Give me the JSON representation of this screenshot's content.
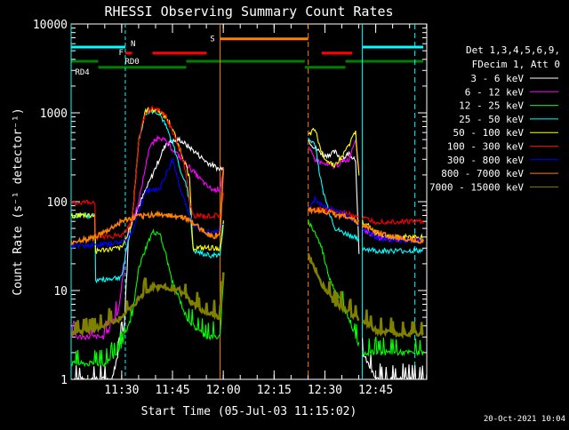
{
  "chart_data": {
    "type": "line",
    "title": "RHESSI Observing Summary Count Rates",
    "xlabel": "Start Time (05-Jul-03 11:15:02)",
    "ylabel": "Count Rate (s⁻¹ detector⁻¹)",
    "y_scale": "log",
    "ylim": [
      1,
      10000
    ],
    "xlim_minutes_since_start": [
      0,
      105
    ],
    "x_ticks": [
      "11:30",
      "11:45",
      "12:00",
      "12:15",
      "12:30",
      "12:45"
    ],
    "y_ticks": [
      "1",
      "10",
      "100",
      "1000",
      "10000"
    ],
    "legend_header": [
      "Det 1,3,4,5,6,9,",
      "FDecim 1, Att 0"
    ],
    "timestamp": "20-Oct-2021 10:04",
    "flags": [
      {
        "label": "N",
        "color": "#00ffff",
        "level": 5500,
        "segments": [
          [
            0,
            16
          ],
          [
            86,
            104
          ]
        ]
      },
      {
        "label": "F",
        "color": "#ff0000",
        "level": 4700,
        "segments": [
          [
            16,
            18
          ],
          [
            24,
            40
          ],
          [
            74,
            83
          ]
        ]
      },
      {
        "label": "S",
        "color": "#ff8000",
        "level": 6800,
        "segments": [
          [
            44,
            70
          ]
        ]
      },
      {
        "label": "RD0",
        "color": "#008000",
        "level": 3800,
        "segments": [
          [
            0,
            8
          ],
          [
            34,
            69
          ],
          [
            81,
            104
          ]
        ]
      },
      {
        "label": "RD4",
        "color": "#008000",
        "level": 3250,
        "segments": [
          [
            8,
            34
          ],
          [
            69,
            81
          ]
        ]
      }
    ],
    "gaps_minutes": [
      [
        45,
        70
      ],
      [
        85,
        86
      ]
    ],
    "series": [
      {
        "name": "3 - 6 keV",
        "color": "#ffffff",
        "t": [
          0,
          10,
          12,
          14,
          16,
          17,
          20,
          24,
          28,
          32,
          36,
          40,
          44,
          45,
          70,
          72,
          75,
          78,
          80,
          82,
          84,
          86,
          90,
          95,
          104
        ],
        "values": [
          1,
          1,
          1,
          2,
          5,
          50,
          90,
          200,
          450,
          500,
          380,
          280,
          230,
          260,
          500,
          400,
          330,
          360,
          300,
          350,
          300,
          2,
          1,
          1,
          1
        ]
      },
      {
        "name": "6 - 12 keV",
        "color": "#ff00ff",
        "t": [
          0,
          10,
          14,
          17,
          20,
          23,
          26,
          28,
          32,
          36,
          40,
          42,
          44,
          45,
          70,
          72,
          75,
          78,
          80,
          82,
          84,
          85,
          86,
          90,
          95,
          104
        ],
        "values": [
          3,
          3,
          6,
          45,
          100,
          400,
          550,
          470,
          320,
          220,
          150,
          135,
          140,
          240,
          400,
          300,
          260,
          250,
          280,
          300,
          520,
          200,
          50,
          40,
          38,
          38
        ]
      },
      {
        "name": "12 - 25 keV",
        "color": "#00ff00",
        "t": [
          0,
          10,
          14,
          18,
          20,
          22,
          24,
          26,
          28,
          30,
          32,
          34,
          36,
          40,
          44,
          45,
          70,
          72,
          74,
          76,
          78,
          80,
          82,
          84,
          86,
          90,
          95,
          104
        ],
        "values": [
          1.5,
          1.5,
          2,
          5,
          18,
          30,
          45,
          45,
          25,
          12,
          8,
          5,
          4,
          3,
          3,
          15,
          60,
          45,
          30,
          15,
          10,
          7,
          5,
          3,
          2,
          2,
          2,
          2
        ]
      },
      {
        "name": "25 - 50 keV",
        "color": "#00ffff",
        "t": [
          0,
          7,
          7.2,
          14,
          15,
          18,
          20,
          22,
          24,
          26,
          28,
          30,
          32,
          34,
          35,
          36,
          40,
          44,
          45,
          70,
          72,
          74,
          76,
          78,
          80,
          84,
          86,
          90,
          95,
          104
        ],
        "values": [
          70,
          70,
          13,
          14,
          15,
          60,
          500,
          1000,
          1050,
          1000,
          700,
          450,
          250,
          150,
          100,
          28,
          25,
          25,
          60,
          500,
          450,
          150,
          80,
          50,
          45,
          40,
          30,
          28,
          28,
          28
        ]
      },
      {
        "name": "50 - 100 keV",
        "color": "#ffff00",
        "t": [
          0,
          7,
          7.2,
          15,
          18,
          20,
          22,
          24,
          26,
          28,
          30,
          32,
          34,
          35,
          36,
          40,
          44,
          45,
          70,
          72,
          74,
          76,
          78,
          80,
          84,
          86,
          90,
          95,
          104
        ],
        "values": [
          70,
          70,
          28,
          30,
          60,
          500,
          1050,
          1100,
          1050,
          900,
          650,
          400,
          250,
          180,
          30,
          30,
          30,
          60,
          550,
          650,
          350,
          280,
          260,
          320,
          600,
          60,
          45,
          40,
          40
        ]
      },
      {
        "name": "100 - 300 keV",
        "color": "#ff0000",
        "t": [
          0,
          7,
          7.2,
          15,
          18,
          20,
          22,
          24,
          26,
          28,
          30,
          32,
          34,
          35,
          36,
          40,
          44,
          45,
          70,
          72,
          76,
          80,
          84,
          86,
          90,
          95,
          104
        ],
        "values": [
          95,
          100,
          40,
          42,
          60,
          500,
          1050,
          1100,
          1050,
          900,
          600,
          400,
          200,
          100,
          70,
          68,
          70,
          120,
          85,
          82,
          80,
          75,
          70,
          65,
          60,
          60,
          60
        ]
      },
      {
        "name": "300 - 800 keV",
        "color": "#0000ff",
        "t": [
          0,
          10,
          15,
          18,
          20,
          22,
          24,
          26,
          28,
          30,
          32,
          34,
          36,
          40,
          44,
          45,
          70,
          72,
          74,
          76,
          78,
          80,
          84,
          86,
          90,
          95,
          104
        ],
        "values": [
          32,
          33,
          35,
          45,
          80,
          130,
          135,
          140,
          200,
          300,
          150,
          90,
          55,
          45,
          48,
          60,
          80,
          110,
          90,
          85,
          80,
          75,
          60,
          50,
          40,
          37,
          36
        ]
      },
      {
        "name": "800 - 7000 keV",
        "color": "#ff8000",
        "t": [
          0,
          5,
          10,
          15,
          20,
          25,
          30,
          34,
          38,
          42,
          44,
          45,
          70,
          74,
          78,
          82,
          86,
          90,
          95,
          104
        ],
        "values": [
          35,
          38,
          45,
          60,
          68,
          72,
          70,
          65,
          50,
          40,
          45,
          250,
          82,
          80,
          72,
          68,
          55,
          45,
          40,
          36
        ]
      },
      {
        "name": "7000 - 15000 keV",
        "color": "#808000",
        "t": [
          0,
          5,
          10,
          15,
          20,
          24,
          28,
          32,
          36,
          40,
          44,
          45,
          70,
          72,
          74,
          76,
          78,
          80,
          84,
          86,
          90,
          95,
          104
        ],
        "values": [
          3.3,
          3.5,
          4,
          5,
          8,
          11,
          11,
          10,
          7,
          5.5,
          5,
          15,
          25,
          18,
          12,
          9,
          7,
          6.5,
          5,
          4.5,
          3.5,
          3.3,
          3.3
        ]
      }
    ]
  }
}
